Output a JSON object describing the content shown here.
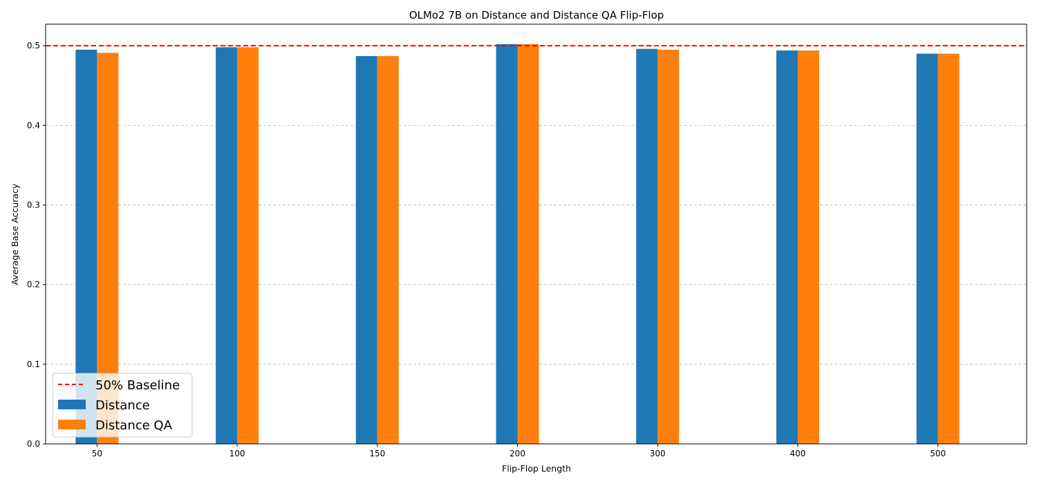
{
  "chart_data": {
    "type": "bar",
    "title": "OLMo2 7B on Distance and Distance QA Flip-Flop",
    "xlabel": "Flip-Flop Length",
    "ylabel": "Average Base Accuracy",
    "categories": [
      "50",
      "100",
      "150",
      "200",
      "300",
      "400",
      "500"
    ],
    "series": [
      {
        "name": "Distance",
        "color": "#1f77b4",
        "values": [
          0.495,
          0.498,
          0.487,
          0.502,
          0.496,
          0.494,
          0.49
        ]
      },
      {
        "name": "Distance QA",
        "color": "#ff7f0e",
        "values": [
          0.491,
          0.498,
          0.487,
          0.502,
          0.495,
          0.494,
          0.49
        ]
      }
    ],
    "baseline": {
      "name": "50% Baseline",
      "value": 0.5,
      "color": "#ff0000",
      "style": "dashed"
    },
    "ylim": [
      0,
      0.527
    ],
    "yticks": [
      0.0,
      0.1,
      0.2,
      0.3,
      0.4,
      0.5
    ],
    "ytick_labels": [
      "0.0",
      "0.1",
      "0.2",
      "0.3",
      "0.4",
      "0.5"
    ],
    "grid": "y-dashed",
    "legend_position": "lower-left"
  }
}
